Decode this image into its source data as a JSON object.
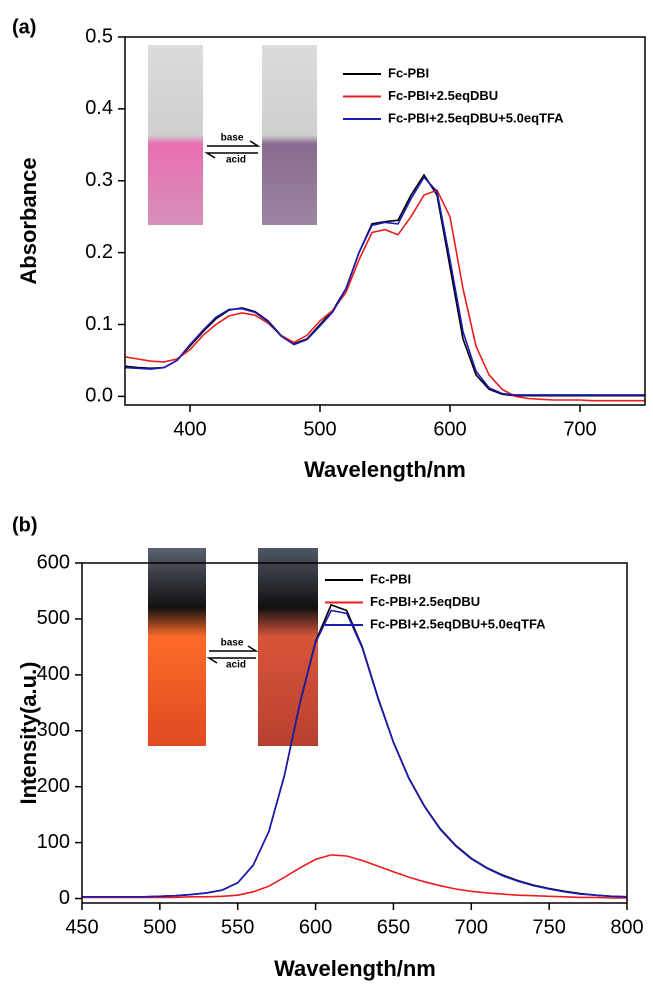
{
  "chart_data": [
    {
      "type": "line",
      "panel_label": "(a)",
      "x_label": "Wavelength/nm",
      "y_label": "Absorbance",
      "inset_labels": [
        "base",
        "acid"
      ],
      "x": [
        350,
        360,
        370,
        380,
        390,
        400,
        410,
        420,
        430,
        440,
        450,
        460,
        470,
        480,
        490,
        500,
        510,
        520,
        530,
        540,
        550,
        560,
        570,
        580,
        590,
        600,
        610,
        620,
        630,
        640,
        650,
        660,
        670,
        680,
        690,
        700,
        710,
        720,
        730,
        740,
        750
      ],
      "series": [
        {
          "name": "Fc-PBI",
          "color": "#000000",
          "values": [
            0.042,
            0.04,
            0.039,
            0.04,
            0.05,
            0.07,
            0.09,
            0.108,
            0.12,
            0.123,
            0.118,
            0.105,
            0.085,
            0.073,
            0.08,
            0.1,
            0.12,
            0.15,
            0.2,
            0.24,
            0.243,
            0.245,
            0.28,
            0.308,
            0.28,
            0.18,
            0.08,
            0.03,
            0.01,
            0.003,
            0.001,
            0.001,
            0.001,
            0.001,
            0.001,
            0.001,
            0.001,
            0.001,
            0.001,
            0.001,
            0.001
          ]
        },
        {
          "name": "Fc-PBI+2.5eqDBU",
          "color": "#ee1c1c",
          "values": [
            0.055,
            0.052,
            0.049,
            0.048,
            0.052,
            0.065,
            0.085,
            0.1,
            0.112,
            0.116,
            0.113,
            0.102,
            0.085,
            0.075,
            0.085,
            0.105,
            0.12,
            0.145,
            0.19,
            0.228,
            0.232,
            0.225,
            0.25,
            0.28,
            0.287,
            0.25,
            0.15,
            0.07,
            0.03,
            0.01,
            0.0,
            -0.003,
            -0.004,
            -0.005,
            -0.005,
            -0.005,
            -0.006,
            -0.006,
            -0.006,
            -0.006,
            -0.006
          ]
        },
        {
          "name": "Fc-PBI+2.5eqDBU+5.0eqTFA",
          "color": "#1a1ab4",
          "values": [
            0.04,
            0.039,
            0.038,
            0.04,
            0.05,
            0.072,
            0.092,
            0.11,
            0.121,
            0.122,
            0.117,
            0.104,
            0.084,
            0.072,
            0.079,
            0.098,
            0.118,
            0.15,
            0.2,
            0.238,
            0.242,
            0.24,
            0.275,
            0.305,
            0.285,
            0.19,
            0.09,
            0.035,
            0.012,
            0.004,
            0.002,
            0.002,
            0.002,
            0.002,
            0.002,
            0.002,
            0.002,
            0.002,
            0.002,
            0.002,
            0.002
          ]
        }
      ],
      "xlim": [
        350,
        750
      ],
      "xticks": [
        400,
        500,
        600,
        700
      ],
      "ylim": [
        -0.012,
        0.5
      ],
      "yticks": [
        {
          "value": 0,
          "label": "0.0"
        },
        0.1,
        0.2,
        0.3,
        0.4,
        0.5
      ]
    },
    {
      "type": "line",
      "panel_label": "(b)",
      "x_label": "Wavelength/nm",
      "y_label": "Intensity(a.u.)",
      "inset_labels": [
        "base",
        "acid"
      ],
      "x": [
        450,
        460,
        470,
        480,
        490,
        500,
        510,
        520,
        530,
        540,
        550,
        560,
        570,
        580,
        590,
        600,
        610,
        620,
        630,
        640,
        650,
        660,
        670,
        680,
        690,
        700,
        710,
        720,
        730,
        740,
        750,
        760,
        770,
        780,
        790,
        800
      ],
      "series": [
        {
          "name": "Fc-PBI",
          "color": "#000000",
          "values": [
            3,
            3,
            3,
            3,
            3,
            4,
            5,
            7,
            10,
            15,
            28,
            60,
            120,
            220,
            350,
            460,
            525,
            515,
            450,
            360,
            280,
            215,
            165,
            125,
            95,
            72,
            55,
            42,
            32,
            24,
            18,
            13,
            9,
            6,
            4,
            3
          ]
        },
        {
          "name": "Fc-PBI+2.5eqDBU",
          "color": "#ee1c1c",
          "values": [
            2,
            2,
            2,
            2,
            2,
            2,
            2,
            3,
            3,
            4,
            6,
            12,
            22,
            38,
            55,
            70,
            78,
            76,
            68,
            58,
            48,
            38,
            30,
            23,
            17,
            13,
            10,
            8,
            6,
            5,
            4,
            3,
            2,
            2,
            1,
            1
          ]
        },
        {
          "name": "Fc-PBI+2.5eqDBU+5.0eqTFA",
          "color": "#1a1ab4",
          "values": [
            3,
            3,
            3,
            3,
            3,
            4,
            5,
            7,
            10,
            15,
            28,
            60,
            120,
            220,
            350,
            458,
            515,
            510,
            448,
            358,
            279,
            214,
            164,
            124,
            94,
            71,
            54,
            41,
            31,
            23,
            17,
            12,
            8,
            6,
            4,
            3
          ]
        }
      ],
      "xlim": [
        450,
        800
      ],
      "xticks": [
        450,
        500,
        550,
        600,
        650,
        700,
        750,
        800
      ],
      "ylim": [
        -8,
        600
      ],
      "yticks": [
        0,
        100,
        200,
        300,
        400,
        500,
        600
      ]
    }
  ]
}
